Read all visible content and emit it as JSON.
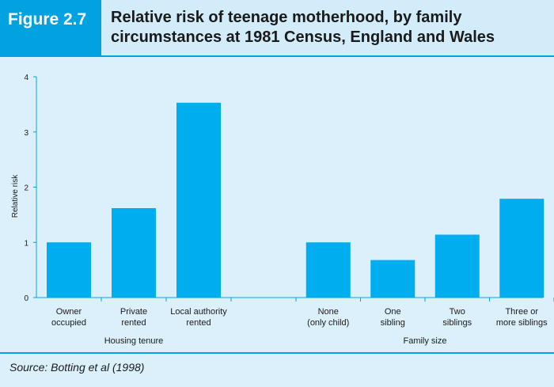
{
  "figure": {
    "label": "Figure 2.7",
    "title_line1": "Relative risk of teenage motherhood, by family",
    "title_line2": "circumstances at 1981 Census, England and Wales"
  },
  "source": "Source: Botting et al (1998)",
  "colors": {
    "accent": "#00a3e0",
    "background": "#dcf0fb",
    "bar": "#00aeef"
  },
  "chart_data": {
    "type": "bar",
    "title": "Relative risk of teenage motherhood, by family circumstances at 1981 Census, England and Wales",
    "ylabel": "Relative risk",
    "xlabel": "",
    "ylim": [
      0,
      4
    ],
    "yticks": [
      "0",
      "1",
      "2",
      "3",
      "4"
    ],
    "grid": false,
    "groups": [
      {
        "name": "Housing tenure",
        "categories": [
          [
            "Owner",
            "occupied"
          ],
          [
            "Private",
            "rented"
          ],
          [
            "Local authority",
            "rented"
          ]
        ],
        "values": [
          1.0,
          1.62,
          3.53
        ]
      },
      {
        "name": "Family size",
        "categories": [
          [
            "None",
            "(only child)"
          ],
          [
            "One",
            "sibling"
          ],
          [
            "Two",
            "siblings"
          ],
          [
            "Three or",
            "more siblings"
          ]
        ],
        "values": [
          1.0,
          0.68,
          1.14,
          1.79
        ]
      }
    ]
  }
}
